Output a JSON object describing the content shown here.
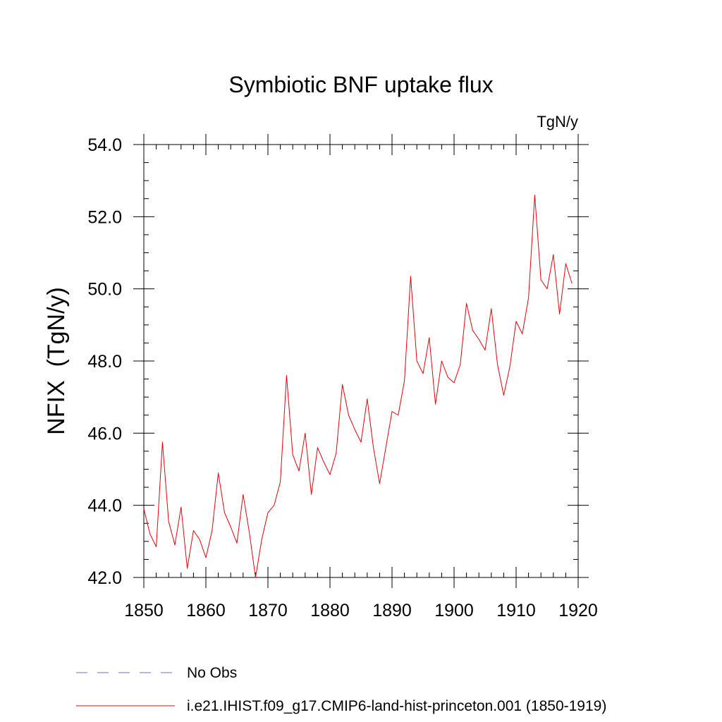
{
  "chart_data": {
    "type": "line",
    "title": "Symbiotic BNF uptake flux",
    "units": "TgN/y",
    "xlabel": "",
    "ylabel": "NFIX  (TgN/y)",
    "xlim": [
      1850,
      1920
    ],
    "ylim": [
      42.0,
      54.0
    ],
    "x_ticks": [
      "1850",
      "1860",
      "1870",
      "1880",
      "1890",
      "1900",
      "1910",
      "1920"
    ],
    "y_ticks": [
      "42.0",
      "44.0",
      "46.0",
      "48.0",
      "50.0",
      "52.0",
      "54.0"
    ],
    "grid": false,
    "legend_position": "bottom",
    "legend": [
      {
        "label": "No Obs",
        "color": "#7b68c8",
        "style": "dashed"
      },
      {
        "label": "i.e21.IHIST.f09_g17.CMIP6-land-hist-princeton.001 (1850-1919)",
        "color": "#e8000b",
        "style": "solid"
      }
    ],
    "series": [
      {
        "name": "i.e21.IHIST.f09_g17.CMIP6-land-hist-princeton.001 (1850-1919)",
        "color": "#e8000b",
        "x": [
          1850,
          1851,
          1852,
          1853,
          1854,
          1855,
          1856,
          1857,
          1858,
          1859,
          1860,
          1861,
          1862,
          1863,
          1864,
          1865,
          1866,
          1867,
          1868,
          1869,
          1870,
          1871,
          1872,
          1873,
          1874,
          1875,
          1876,
          1877,
          1878,
          1879,
          1880,
          1881,
          1882,
          1883,
          1884,
          1885,
          1886,
          1887,
          1888,
          1889,
          1890,
          1891,
          1892,
          1893,
          1894,
          1895,
          1896,
          1897,
          1898,
          1899,
          1900,
          1901,
          1902,
          1903,
          1904,
          1905,
          1906,
          1907,
          1908,
          1909,
          1910,
          1911,
          1912,
          1913,
          1914,
          1915,
          1916,
          1917,
          1918,
          1919
        ],
        "values": [
          43.9,
          43.2,
          42.85,
          45.75,
          43.55,
          42.9,
          43.95,
          42.25,
          43.3,
          43.05,
          42.55,
          43.3,
          44.9,
          43.8,
          43.4,
          42.95,
          44.3,
          43.25,
          42.0,
          43.05,
          43.8,
          44.0,
          44.65,
          47.6,
          45.4,
          44.95,
          46.0,
          44.3,
          45.6,
          45.2,
          44.85,
          45.45,
          47.35,
          46.5,
          46.1,
          45.75,
          46.95,
          45.6,
          44.6,
          45.6,
          46.6,
          46.5,
          47.45,
          50.35,
          48.0,
          47.65,
          48.65,
          46.8,
          48.0,
          47.55,
          47.4,
          47.9,
          49.6,
          48.85,
          48.6,
          48.3,
          49.45,
          47.9,
          47.05,
          47.85,
          49.1,
          48.75,
          49.75,
          52.6,
          50.25,
          50.0,
          50.95,
          49.3,
          50.7,
          50.15
        ]
      }
    ]
  }
}
